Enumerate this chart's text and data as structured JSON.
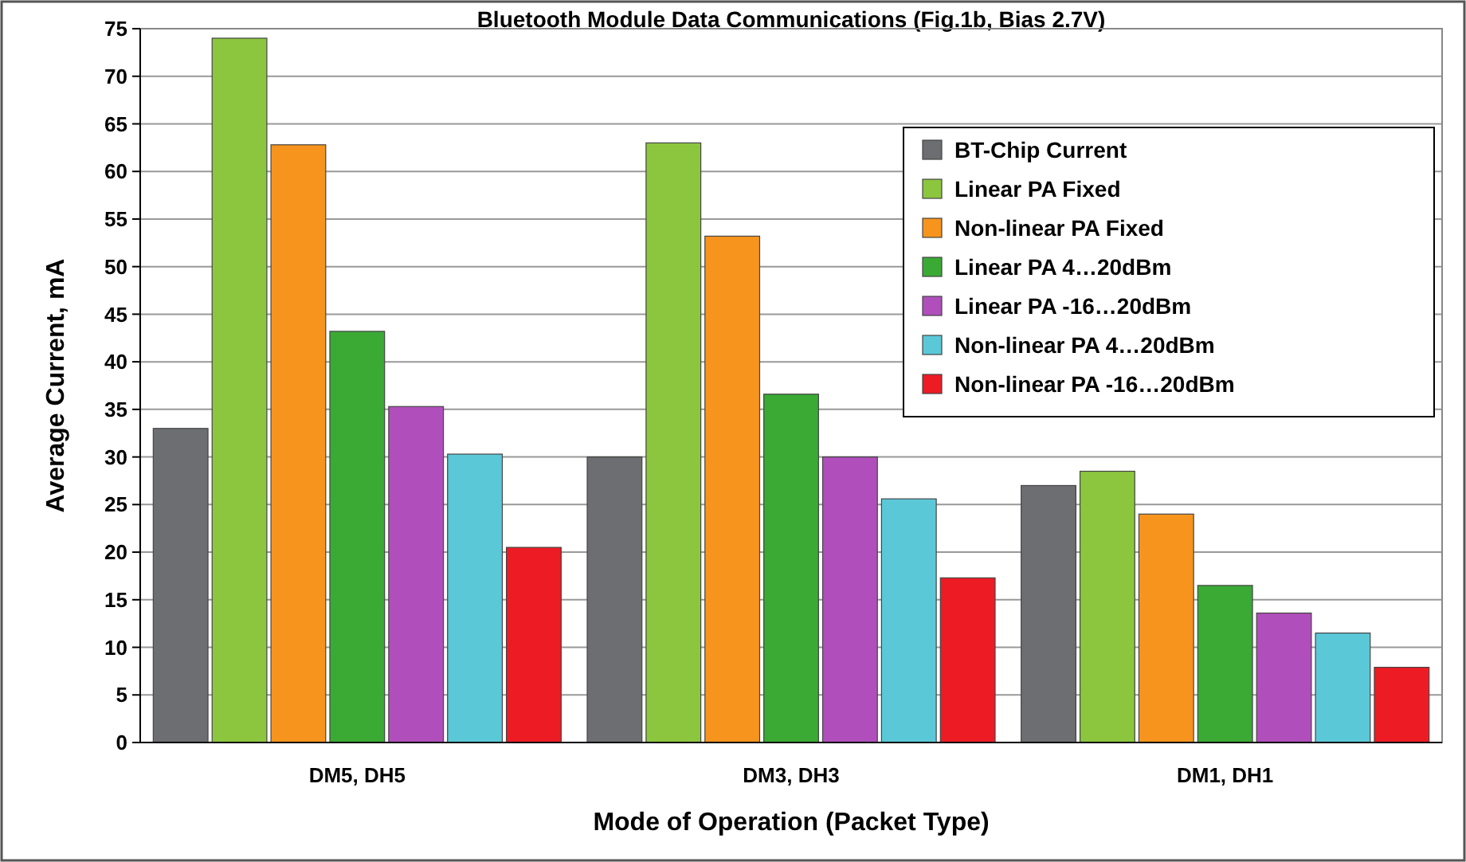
{
  "chart_data": {
    "type": "bar",
    "title": "Bluetooth Module Data Communications (Fig.1b, Bias 2.7V)",
    "xlabel": "Mode of Operation (Packet Type)",
    "ylabel": "Average Current, mA",
    "categories": [
      "DM5, DH5",
      "DM3, DH3",
      "DM1, DH1"
    ],
    "series": [
      {
        "name": "BT-Chip Current",
        "color": "#6d6e71",
        "values": [
          33,
          30,
          27
        ]
      },
      {
        "name": "Linear PA Fixed",
        "color": "#8cc63f",
        "values": [
          74,
          63,
          28.5
        ]
      },
      {
        "name": "Non-linear PA Fixed",
        "color": "#f7941d",
        "values": [
          62.8,
          53.2,
          24
        ]
      },
      {
        "name": "Linear PA 4…20dBm",
        "color": "#3aaa35",
        "values": [
          43.2,
          36.6,
          16.5
        ]
      },
      {
        "name": "Linear PA -16…20dBm",
        "color": "#b04fbb",
        "values": [
          35.3,
          30,
          13.6
        ]
      },
      {
        "name": "Non-linear PA 4…20dBm",
        "color": "#5bc8d8",
        "values": [
          30.3,
          25.6,
          11.5
        ]
      },
      {
        "name": "Non-linear PA -16…20dBm",
        "color": "#ed1c24",
        "values": [
          20.5,
          17.3,
          7.9
        ]
      }
    ],
    "ylim": [
      0,
      75
    ],
    "yticks": [
      0,
      5,
      10,
      15,
      20,
      25,
      30,
      35,
      40,
      45,
      50,
      55,
      60,
      65,
      70,
      75
    ],
    "grid": "y",
    "legend": "top right"
  }
}
